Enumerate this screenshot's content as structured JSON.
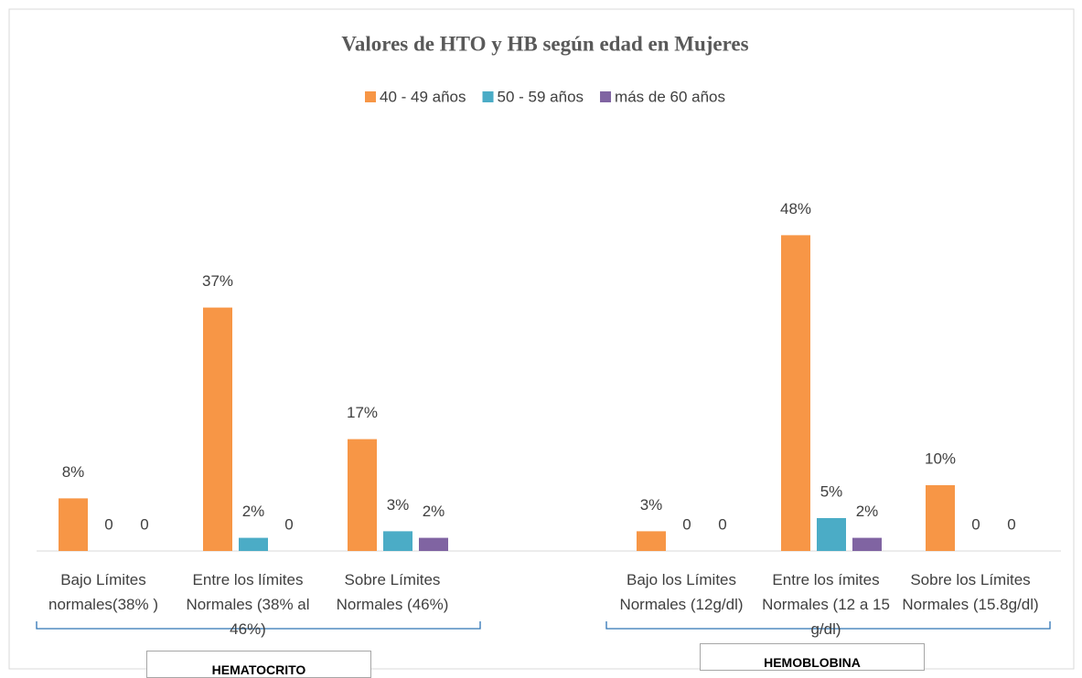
{
  "chart_data": {
    "type": "bar",
    "title": "Valores de HTO y HB según edad en Mujeres",
    "categories": [
      "Bajo Límites normales(38% )",
      "Entre los límites Normales (38% al 46%)",
      "Sobre Límites Normales (46%)",
      null,
      "Bajo los Límites Normales (12g/dl)",
      "Entre los ímites Normales (12 a 15 g/dl)",
      "Sobre los Límites Normales (15.8g/dl)"
    ],
    "series": [
      {
        "name": "40 - 49 años",
        "color": "#f79646",
        "values": [
          8,
          37,
          17,
          null,
          3,
          48,
          10
        ],
        "value_labels": [
          "8%",
          "37%",
          "17%",
          null,
          "3%",
          "48%",
          "10%"
        ]
      },
      {
        "name": "50 - 59 años",
        "color": "#4bacc6",
        "values": [
          0,
          2,
          3,
          null,
          0,
          5,
          0
        ],
        "value_labels": [
          "0",
          "2%",
          "3%",
          null,
          "0",
          "5%",
          "0"
        ]
      },
      {
        "name": "más de 60 años",
        "color": "#8064a2",
        "values": [
          0,
          0,
          2,
          null,
          0,
          2,
          0
        ],
        "value_labels": [
          "0",
          "0",
          "2%",
          null,
          "0",
          "2%",
          "0"
        ]
      }
    ],
    "groups": [
      "HEMATOCRITO",
      "HEMOBLOBINA"
    ],
    "ylim": [
      0,
      50
    ],
    "legend": "top"
  }
}
